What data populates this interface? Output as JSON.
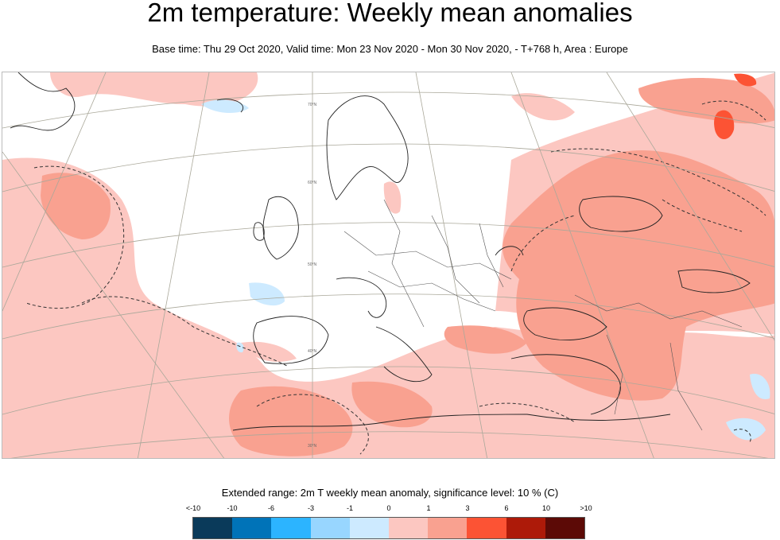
{
  "title": "2m temperature: Weekly mean anomalies",
  "subtitle": "Base time: Thu 29 Oct 2020, Valid time: Mon 23 Nov 2020 - Mon 30 Nov 2020, - T+768 h, Area : Europe",
  "map": {
    "area": "Europe",
    "grid_labels": [
      "70°N",
      "60°N",
      "50°N",
      "40°N",
      "30°N"
    ]
  },
  "legend": {
    "title": "Extended range: 2m T weekly mean anomaly, significance level: 10 % (C)",
    "ticks": [
      "<-10",
      "-10",
      "-6",
      "-3",
      "-1",
      "0",
      "1",
      "3",
      "6",
      "10",
      ">10"
    ],
    "colors": [
      "#0a3a5a",
      "#0073b8",
      "#2cb4ff",
      "#98d6ff",
      "#cdeaff",
      "#ffffff",
      "#fcc7c1",
      "#f9a190",
      "#fc5334",
      "#ad1a09",
      "#5c0a06"
    ]
  }
}
